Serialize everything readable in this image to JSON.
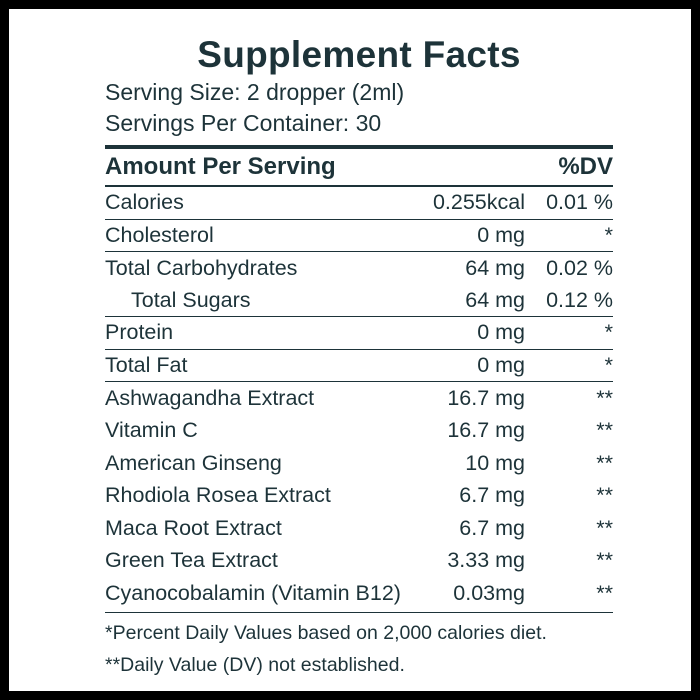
{
  "title": "Supplement Facts",
  "serving_size": "Serving Size:  2 dropper (2ml)",
  "servings_per_container": "Servings Per Container: 30",
  "header": {
    "amount_label": "Amount Per Serving",
    "dv_label": "%DV"
  },
  "rows": [
    {
      "name": "Calories",
      "amount": "0.255kcal",
      "dv": "0.01 %"
    },
    {
      "name": "Cholesterol",
      "amount": "0 mg",
      "dv": "*"
    },
    {
      "name": "Total Carbohydrates",
      "amount": "64 mg",
      "dv": "0.02 %"
    },
    {
      "name": "Total Sugars",
      "amount": "64 mg",
      "dv": "0.12 %"
    },
    {
      "name": "Protein",
      "amount": "0 mg",
      "dv": "*"
    },
    {
      "name": "Total Fat",
      "amount": "0 mg",
      "dv": "*"
    },
    {
      "name": "Ashwagandha Extract",
      "amount": "16.7 mg",
      "dv": "**"
    },
    {
      "name": "Vitamin C",
      "amount": "16.7 mg",
      "dv": "**"
    },
    {
      "name": "American Ginseng",
      "amount": "10 mg",
      "dv": "**"
    },
    {
      "name": "Rhodiola Rosea Extract",
      "amount": "6.7 mg",
      "dv": "**"
    },
    {
      "name": "Maca Root Extract",
      "amount": "6.7 mg",
      "dv": "**"
    },
    {
      "name": "Green Tea Extract",
      "amount": "3.33 mg",
      "dv": "**"
    },
    {
      "name": "Cyanocobalamin (Vitamin B12)",
      "amount": "0.03mg",
      "dv": "**"
    }
  ],
  "footnotes": [
    "*Percent Daily Values based on 2,000 calories diet.",
    "**Daily Value (DV) not established."
  ],
  "colors": {
    "text": "#1d3339",
    "frame": "#000000",
    "background": "#ffffff"
  }
}
